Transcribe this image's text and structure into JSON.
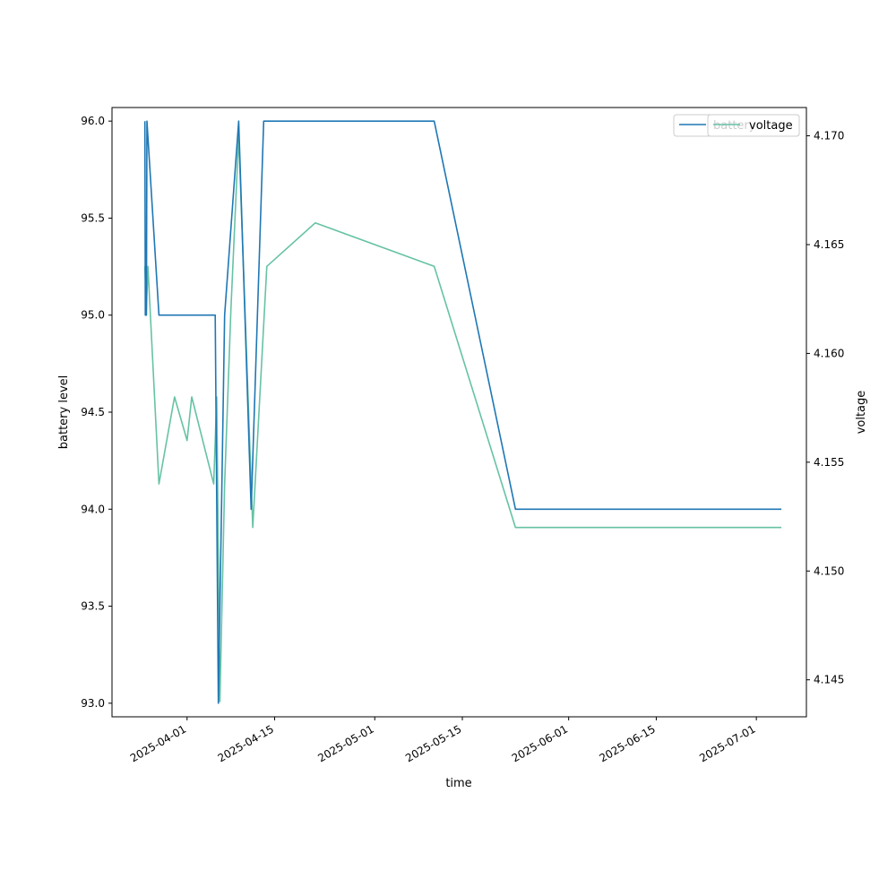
{
  "chart_data": {
    "type": "line",
    "title": "",
    "xlabel": "time",
    "ylabel_left": "battery level",
    "ylabel_right": "voltage",
    "x_ticks": [
      "2025-04-01",
      "2025-04-15",
      "2025-05-01",
      "2025-05-15",
      "2025-06-01",
      "2025-06-15",
      "2025-07-01"
    ],
    "y_left_ticks": [
      "93.0",
      "93.5",
      "94.0",
      "94.5",
      "95.0",
      "95.5",
      "96.0"
    ],
    "y_right_ticks": [
      "4.145",
      "4.150",
      "4.155",
      "4.160",
      "4.165",
      "4.170"
    ],
    "xlim": [
      "2025-03-20",
      "2025-07-09"
    ],
    "ylim_left": [
      92.93,
      96.07
    ],
    "ylim_right": [
      4.1433,
      4.1713
    ],
    "grid": false,
    "legend_placement": "top-right",
    "series": [
      {
        "name": "battery",
        "axis": "left",
        "color": "#1f77b4",
        "points": [
          [
            "2025-03-25T06:00",
            96
          ],
          [
            "2025-03-25T08:00",
            95
          ],
          [
            "2025-03-25T12:00",
            95
          ],
          [
            "2025-03-25T14:00",
            96
          ],
          [
            "2025-03-27T12:00",
            95
          ],
          [
            "2025-04-05T12:00",
            95
          ],
          [
            "2025-04-06T00:00",
            93
          ],
          [
            "2025-04-07T00:00",
            95
          ],
          [
            "2025-04-09T06:00",
            96
          ],
          [
            "2025-04-11T06:00",
            94
          ],
          [
            "2025-04-13T06:00",
            96
          ],
          [
            "2025-05-10T12:00",
            96
          ],
          [
            "2025-05-23T12:00",
            94
          ],
          [
            "2025-07-05T00:00",
            94
          ]
        ]
      },
      {
        "name": "voltage",
        "axis": "right",
        "color": "#66c2a5",
        "points": [
          [
            "2025-03-25T06:00",
            4.164
          ],
          [
            "2025-03-25T12:00",
            4.162
          ],
          [
            "2025-03-25T18:00",
            4.164
          ],
          [
            "2025-03-27T12:00",
            4.154
          ],
          [
            "2025-03-30T00:00",
            4.158
          ],
          [
            "2025-04-01T00:00",
            4.156
          ],
          [
            "2025-04-01T18:00",
            4.158
          ],
          [
            "2025-04-05T06:00",
            4.154
          ],
          [
            "2025-04-05T18:00",
            4.158
          ],
          [
            "2025-04-06T06:00",
            4.144
          ],
          [
            "2025-04-07T00:00",
            4.154
          ],
          [
            "2025-04-08T00:00",
            4.162
          ],
          [
            "2025-04-09T06:00",
            4.17
          ],
          [
            "2025-04-11T12:00",
            4.152
          ],
          [
            "2025-04-13T18:00",
            4.164
          ],
          [
            "2025-04-21T12:00",
            4.166
          ],
          [
            "2025-05-10T12:00",
            4.164
          ],
          [
            "2025-05-23T12:00",
            4.152
          ],
          [
            "2025-07-05T00:00",
            4.152
          ]
        ]
      }
    ]
  }
}
